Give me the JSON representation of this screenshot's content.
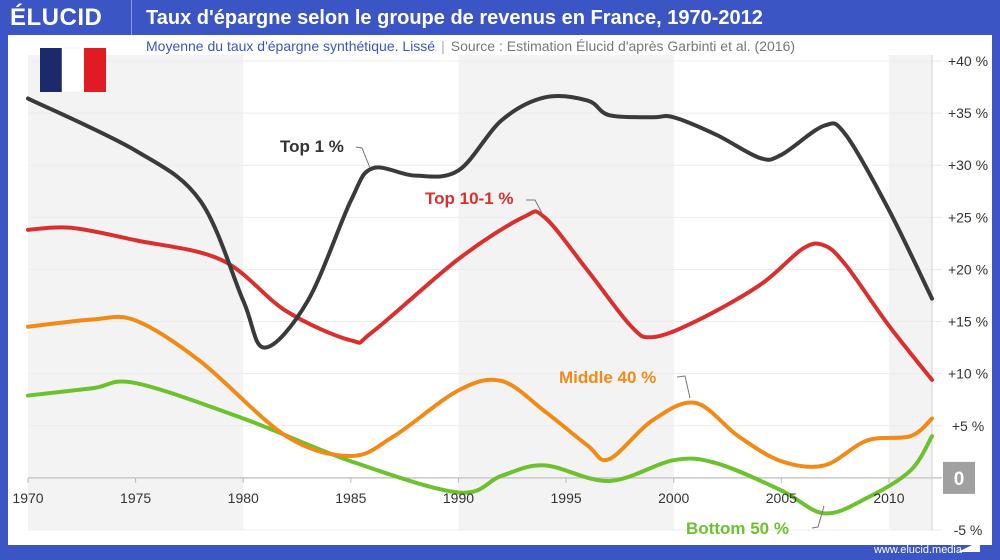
{
  "header": {
    "brand": "ÉLUCID",
    "title": "Taux d'épargne selon le groupe de revenus en France, 1970-2012"
  },
  "subtitle": {
    "text": "Moyenne du taux d'épargne synthétique. Lissé",
    "source": "Source : Estimation Élucid d'après Garbinti et al. (2016)"
  },
  "footer": {
    "url": "www.elucid.media"
  },
  "flag": {
    "country": "France",
    "colors": [
      "#1c2a6b",
      "#ffffff",
      "#e01b24"
    ]
  },
  "chart_data": {
    "type": "line",
    "title": "Taux d'épargne selon le groupe de revenus en France, 1970-2012",
    "xlim": [
      1970,
      2012
    ],
    "ylim": [
      -5,
      40
    ],
    "x_ticks": [
      "1970",
      "1975",
      "1980",
      "1985",
      "1990",
      "1995",
      "2000",
      "2005",
      "2010"
    ],
    "y_ticks": [
      "+40 %",
      "+35 %",
      "+30 %",
      "+25 %",
      "+20 %",
      "+15 %",
      "+10 %",
      "+5 %",
      "0",
      "-5 %"
    ],
    "y_axis_position": "right",
    "grid": true,
    "shaded_decades": [
      [
        1970,
        1980
      ],
      [
        1990,
        2000
      ],
      [
        2010,
        2012
      ]
    ],
    "series": [
      {
        "name": "Top 1 %",
        "color": "#3a3a3a",
        "x": [
          1970,
          1975,
          1978,
          1980,
          1981,
          1983,
          1985,
          1986,
          1988,
          1990,
          1992,
          1994,
          1996,
          1997,
          1999,
          2000,
          2002,
          2004,
          2005,
          2007,
          2008,
          2010,
          2012
        ],
        "values": [
          36.4,
          31.4,
          26.6,
          17,
          12.5,
          17,
          26.6,
          29.7,
          29,
          29.5,
          34.3,
          36.5,
          36.2,
          34.8,
          34.6,
          34.6,
          32.9,
          30.7,
          31,
          33.8,
          32.9,
          25.7,
          17.2
        ]
      },
      {
        "name": "Top 10-1 %",
        "color": "#d9302f",
        "x": [
          1970,
          1972,
          1975,
          1979,
          1982,
          1985,
          1986,
          1990,
          1993,
          1994,
          1996,
          1998,
          1999,
          2001,
          2004,
          2006,
          2007,
          2008,
          2010,
          2012
        ],
        "values": [
          23.8,
          24,
          22.8,
          20.9,
          16,
          13.2,
          14,
          21,
          25,
          25,
          19.9,
          14.6,
          13.5,
          15,
          18.5,
          22,
          22.3,
          20.4,
          14.6,
          9.4
        ]
      },
      {
        "name": "Middle 40 %",
        "color": "#f28a17",
        "x": [
          1970,
          1973,
          1975,
          1978,
          1982,
          1985,
          1987,
          1990,
          1992,
          1994,
          1996,
          1997,
          1999,
          2001,
          2003,
          2005,
          2007,
          2009,
          2011,
          2012
        ],
        "values": [
          14.5,
          15.2,
          15.1,
          11.2,
          4,
          2.1,
          4,
          8.4,
          9.3,
          6.4,
          3.1,
          1.8,
          5.5,
          7.2,
          4,
          1.6,
          1.2,
          3.6,
          4,
          5.7
        ]
      },
      {
        "name": "Bottom 50 %",
        "color": "#6cc12e",
        "x": [
          1970,
          1973,
          1975,
          1980,
          1985,
          1990,
          1992,
          1994,
          1997,
          2000,
          2002,
          2005,
          2007,
          2009,
          2011,
          2012
        ],
        "values": [
          7.9,
          8.6,
          9.1,
          5.7,
          1.6,
          -1.4,
          0.2,
          1.2,
          -0.3,
          1.7,
          1.4,
          -1.2,
          -3.4,
          -1.9,
          0.7,
          4
        ]
      }
    ]
  }
}
